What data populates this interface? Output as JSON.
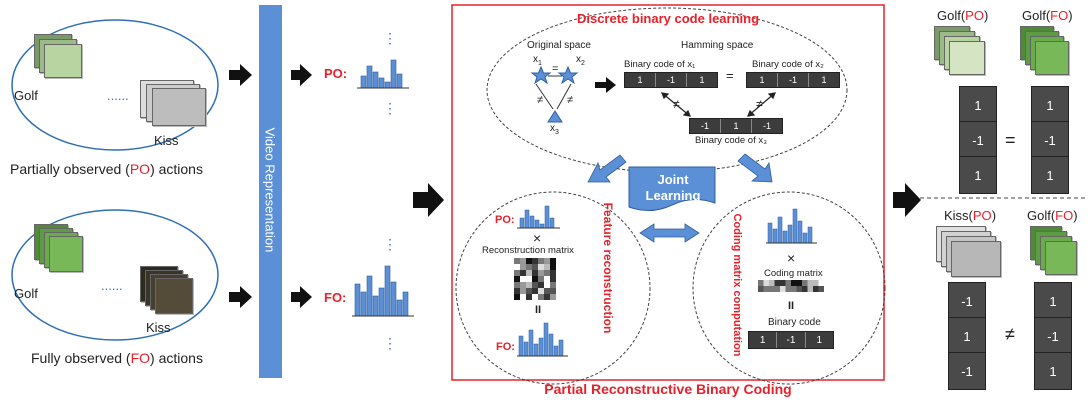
{
  "left": {
    "po_group": {
      "golf": "Golf",
      "kiss": "Kiss",
      "ellipsis": "......"
    },
    "po_caption": {
      "pre": "Partially observed (",
      "tag": "PO",
      "post": ") actions"
    },
    "fo_group": {
      "golf": "Golf",
      "kiss": "Kiss",
      "ellipsis": "......"
    },
    "fo_caption": {
      "pre": "Fully observed (",
      "tag": "FO",
      "post": ") actions"
    }
  },
  "video_representation": "Video Representation",
  "histograms": {
    "po_label": "PO:",
    "fo_label": "FO:",
    "vdots": "⋮"
  },
  "center": {
    "outer_title": "Partial Reconstructive Binary Coding",
    "top": {
      "title": "Discrete binary code learning",
      "original_space": "Original space",
      "hamming_space": "Hamming space",
      "x1": "x",
      "x1_sub": "1",
      "x2": "x",
      "x2_sub": "2",
      "x3": "x",
      "x3_sub": "3",
      "eq": "=",
      "neq": "≠",
      "code_x1_label": "Binary code of x₁",
      "code_x2_label": "Binary code of x₂",
      "code_x3_label": "Binary code of x₃",
      "code_x1": [
        "1",
        "-1",
        "1"
      ],
      "code_x2": [
        "1",
        "-1",
        "1"
      ],
      "code_x3": [
        "-1",
        "1",
        "-1"
      ]
    },
    "joint": [
      "Joint",
      "Learning"
    ],
    "feature": {
      "side_label": "Feature reconstruction",
      "po_label": "PO:",
      "times": "×",
      "matrix_label": "Reconstruction matrix",
      "equals": "II",
      "fo_label": "FO:"
    },
    "coding": {
      "side_label": "Coding matrix computation",
      "times": "×",
      "matrix_label": "Coding matrix",
      "equals": "II",
      "code_label": "Binary code",
      "code": [
        "1",
        "-1",
        "1"
      ]
    }
  },
  "right": {
    "top": {
      "left_head": "Golf(",
      "left_tag": "PO",
      "right_head": "Golf(",
      "right_tag": "FO",
      "close": ")",
      "left_code": [
        "1",
        "-1",
        "1"
      ],
      "right_code": [
        "1",
        "-1",
        "1"
      ],
      "relation": "="
    },
    "bottom": {
      "left_head": "Kiss(",
      "left_tag": "PO",
      "right_head": "Golf(",
      "right_tag": "FO",
      "close": ")",
      "left_code": [
        "-1",
        "1",
        "-1"
      ],
      "right_code": [
        "1",
        "-1",
        "1"
      ],
      "relation": "≠"
    }
  },
  "colors": {
    "accent_red": "#e8202a",
    "bar_blue": "#5b8fd6",
    "panel_blue": "#5b8fd6",
    "ellipse_blue": "#2f6fb5"
  }
}
